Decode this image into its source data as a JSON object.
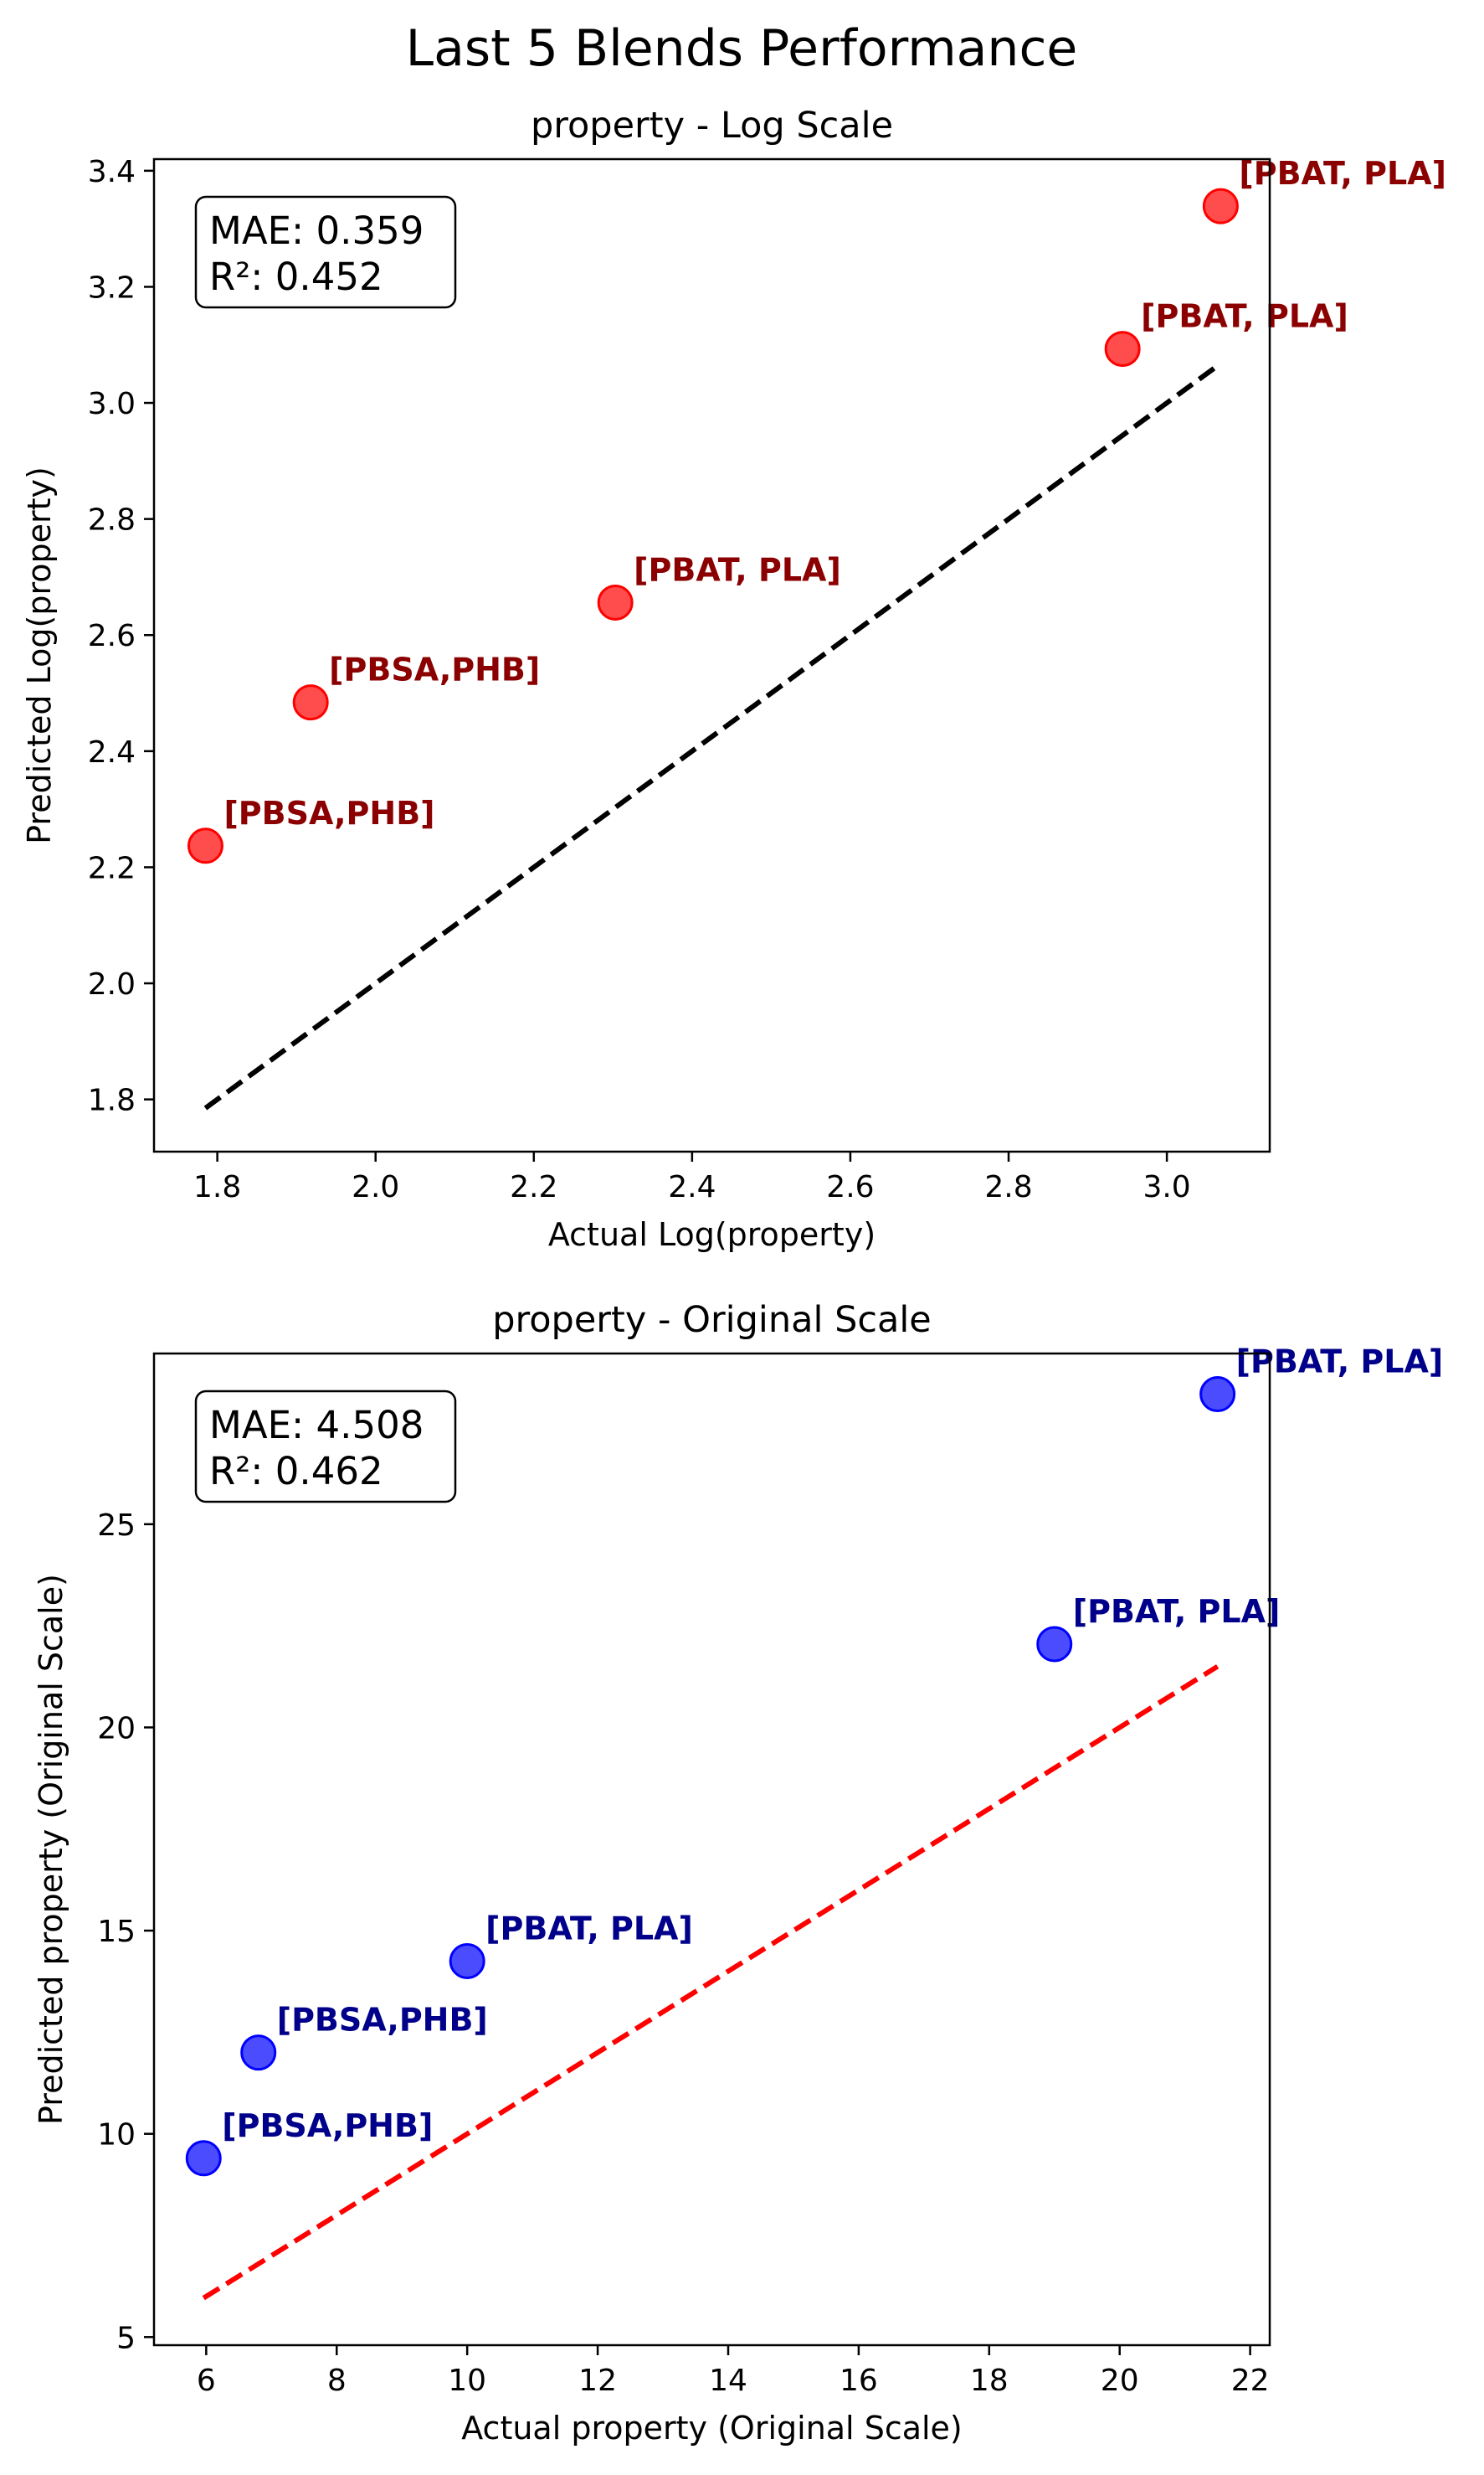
{
  "title": "Last 5 Blends Performance",
  "chart_data": [
    {
      "type": "scatter",
      "title": "property - Log Scale",
      "xlabel": "Actual Log(property)",
      "ylabel": "Predicted Log(property)",
      "xlim": [
        1.72,
        3.13
      ],
      "ylim": [
        1.71,
        3.42
      ],
      "xticks": [
        "1.8",
        "2.0",
        "2.2",
        "2.4",
        "2.6",
        "2.8",
        "3.0"
      ],
      "yticks": [
        "1.8",
        "2.0",
        "2.2",
        "2.4",
        "2.6",
        "2.8",
        "3.0",
        "3.2",
        "3.4"
      ],
      "grid": false,
      "metrics": [
        "MAE: 0.359",
        "R²: 0.452"
      ],
      "point_color": "#ff0000",
      "label_color": "#8b0000",
      "reference_line": {
        "style": "dashed",
        "color": "#000000",
        "from": [
          1.785,
          1.785
        ],
        "to": [
          3.065,
          3.065
        ]
      },
      "points": [
        {
          "x": 1.785,
          "y": 2.237,
          "label": "[PBSA,PHB]"
        },
        {
          "x": 1.918,
          "y": 2.484,
          "label": "[PBSA,PHB]"
        },
        {
          "x": 2.303,
          "y": 2.656,
          "label": "[PBAT, PLA]"
        },
        {
          "x": 2.944,
          "y": 3.093,
          "label": "[PBAT, PLA]"
        },
        {
          "x": 3.068,
          "y": 3.339,
          "label": "[PBAT, PLA]"
        }
      ]
    },
    {
      "type": "scatter",
      "title": "property - Original Scale",
      "xlabel": "Actual property (Original Scale)",
      "ylabel": "Predicted property (Original Scale)",
      "xlim": [
        5.2,
        22.3
      ],
      "ylim": [
        4.8,
        29.2
      ],
      "xticks": [
        "6",
        "8",
        "10",
        "12",
        "14",
        "16",
        "18",
        "20",
        "22"
      ],
      "yticks": [
        "5",
        "10",
        "15",
        "20",
        "25"
      ],
      "grid": false,
      "metrics": [
        "MAE: 4.508",
        "R²: 0.462"
      ],
      "point_color": "#0000ff",
      "label_color": "#00008b",
      "reference_line": {
        "style": "dashed",
        "color": "#ff0000",
        "from": [
          5.96,
          5.96
        ],
        "to": [
          21.5,
          21.5
        ]
      },
      "points": [
        {
          "x": 5.96,
          "y": 9.4,
          "label": "[PBSA,PHB]"
        },
        {
          "x": 6.8,
          "y": 12.0,
          "label": "[PBSA,PHB]"
        },
        {
          "x": 10.0,
          "y": 14.25,
          "label": "[PBAT, PLA]"
        },
        {
          "x": 19.0,
          "y": 22.05,
          "label": "[PBAT, PLA]"
        },
        {
          "x": 21.5,
          "y": 28.2,
          "label": "[PBAT, PLA]"
        }
      ]
    }
  ]
}
